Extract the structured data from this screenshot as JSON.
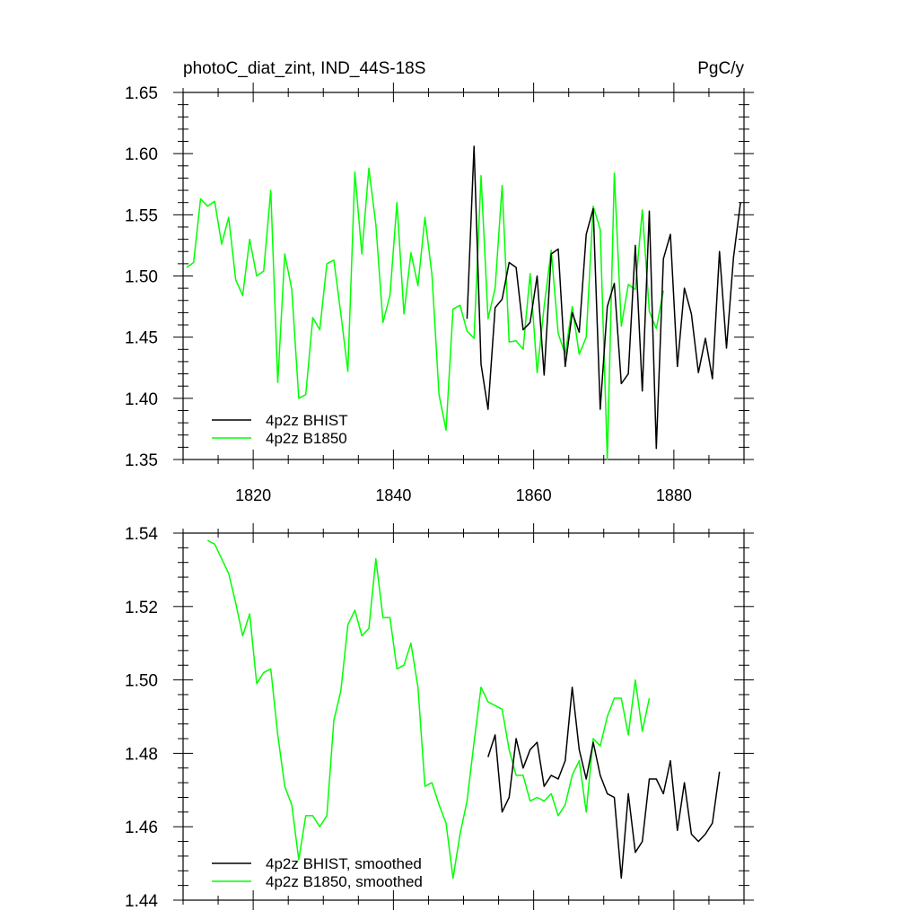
{
  "chart_data": [
    {
      "type": "line",
      "title": "photoC_diat_zint, IND_44S-18S",
      "units": "PgC/y",
      "xlim": [
        1810,
        1890
      ],
      "ylim": [
        1.35,
        1.65
      ],
      "x_ticks": [
        1820,
        1840,
        1860,
        1880
      ],
      "y_ticks": [
        1.35,
        1.4,
        1.45,
        1.5,
        1.55,
        1.6,
        1.65
      ],
      "y_tick_labels": [
        "1.35",
        "1.40",
        "1.45",
        "1.50",
        "1.55",
        "1.60",
        "1.65"
      ],
      "legend_position": "bottom-left",
      "grid": false,
      "series": [
        {
          "name": "4p2z BHIST",
          "color": "#000000",
          "x": [
            1850.5,
            1851.5,
            1852.5,
            1853.5,
            1854.5,
            1855.5,
            1856.5,
            1857.5,
            1858.5,
            1859.5,
            1860.5,
            1861.5,
            1862.5,
            1863.5,
            1864.5,
            1865.5,
            1866.5,
            1867.5,
            1868.5,
            1869.5,
            1870.5,
            1871.5,
            1872.5,
            1873.5,
            1874.5,
            1875.5,
            1876.5,
            1877.5,
            1878.5,
            1879.5,
            1880.5,
            1881.5,
            1882.5,
            1883.5,
            1884.5,
            1885.5,
            1886.5,
            1887.5,
            1888.5,
            1889.5
          ],
          "y": [
            1.465,
            1.606,
            1.428,
            1.391,
            1.474,
            1.481,
            1.511,
            1.507,
            1.456,
            1.462,
            1.5,
            1.419,
            1.518,
            1.522,
            1.426,
            1.47,
            1.454,
            1.534,
            1.555,
            1.391,
            1.475,
            1.494,
            1.412,
            1.42,
            1.525,
            1.406,
            1.553,
            1.359,
            1.514,
            1.534,
            1.426,
            1.49,
            1.469,
            1.421,
            1.449,
            1.416,
            1.52,
            1.441,
            1.515,
            1.56
          ]
        },
        {
          "name": "4p2z B1850",
          "color": "#00ff00",
          "x": [
            1810.5,
            1811.5,
            1812.5,
            1813.5,
            1814.5,
            1815.5,
            1816.5,
            1817.5,
            1818.5,
            1819.5,
            1820.5,
            1821.5,
            1822.5,
            1823.5,
            1824.5,
            1825.5,
            1826.5,
            1827.5,
            1828.5,
            1829.5,
            1830.5,
            1831.5,
            1832.5,
            1833.5,
            1834.5,
            1835.5,
            1836.5,
            1837.5,
            1838.5,
            1839.5,
            1840.5,
            1841.5,
            1842.5,
            1843.5,
            1844.5,
            1845.5,
            1846.5,
            1847.5,
            1848.5,
            1849.5,
            1850.5,
            1851.5,
            1852.5,
            1853.5,
            1854.5,
            1855.5,
            1856.5,
            1857.5,
            1858.5,
            1859.5,
            1860.5,
            1861.5,
            1862.5,
            1863.5,
            1864.5,
            1865.5,
            1866.5,
            1867.5,
            1868.5,
            1869.5,
            1870.5,
            1871.5,
            1872.5,
            1873.5,
            1874.5,
            1875.5,
            1876.5,
            1877.5,
            1878.5
          ],
          "y": [
            1.507,
            1.511,
            1.563,
            1.557,
            1.561,
            1.526,
            1.548,
            1.497,
            1.484,
            1.53,
            1.5,
            1.504,
            1.57,
            1.413,
            1.518,
            1.489,
            1.4,
            1.403,
            1.466,
            1.456,
            1.51,
            1.513,
            1.469,
            1.422,
            1.585,
            1.518,
            1.588,
            1.542,
            1.462,
            1.484,
            1.56,
            1.469,
            1.519,
            1.492,
            1.548,
            1.501,
            1.403,
            1.374,
            1.473,
            1.476,
            1.455,
            1.449,
            1.582,
            1.465,
            1.49,
            1.574,
            1.446,
            1.447,
            1.44,
            1.502,
            1.421,
            1.475,
            1.521,
            1.453,
            1.436,
            1.475,
            1.436,
            1.45,
            1.557,
            1.538,
            1.35,
            1.584,
            1.459,
            1.493,
            1.489,
            1.554,
            1.471,
            1.457,
            1.488
          ]
        }
      ]
    },
    {
      "type": "line",
      "xlim": [
        1810,
        1890
      ],
      "ylim": [
        1.44,
        1.54
      ],
      "x_ticks": [
        1820,
        1840,
        1860,
        1880
      ],
      "y_ticks": [
        1.44,
        1.46,
        1.48,
        1.5,
        1.52,
        1.54
      ],
      "y_tick_labels": [
        "1.44",
        "1.46",
        "1.48",
        "1.50",
        "1.52",
        "1.54"
      ],
      "legend_position": "bottom-left",
      "grid": false,
      "series": [
        {
          "name": "4p2z BHIST, smoothed",
          "color": "#000000",
          "x": [
            1853.5,
            1854.5,
            1855.5,
            1856.5,
            1857.5,
            1858.5,
            1859.5,
            1860.5,
            1861.5,
            1862.5,
            1863.5,
            1864.5,
            1865.5,
            1866.5,
            1867.5,
            1868.5,
            1869.5,
            1870.5,
            1871.5,
            1872.5,
            1873.5,
            1874.5,
            1875.5,
            1876.5,
            1877.5,
            1878.5,
            1879.5,
            1880.5,
            1881.5,
            1882.5,
            1883.5,
            1884.5,
            1885.5,
            1886.5
          ],
          "y": [
            1.479,
            1.485,
            1.464,
            1.468,
            1.484,
            1.476,
            1.481,
            1.483,
            1.471,
            1.474,
            1.473,
            1.478,
            1.498,
            1.481,
            1.473,
            1.483,
            1.474,
            1.469,
            1.468,
            1.446,
            1.469,
            1.453,
            1.456,
            1.473,
            1.473,
            1.469,
            1.478,
            1.459,
            1.472,
            1.458,
            1.456,
            1.458,
            1.461,
            1.475
          ]
        },
        {
          "name": "4p2z B1850, smoothed",
          "color": "#00ff00",
          "x": [
            1813.5,
            1814.5,
            1815.5,
            1816.5,
            1817.5,
            1818.5,
            1819.5,
            1820.5,
            1821.5,
            1822.5,
            1823.5,
            1824.5,
            1825.5,
            1826.5,
            1827.5,
            1828.5,
            1829.5,
            1830.5,
            1831.5,
            1832.5,
            1833.5,
            1834.5,
            1835.5,
            1836.5,
            1837.5,
            1838.5,
            1839.5,
            1840.5,
            1841.5,
            1842.5,
            1843.5,
            1844.5,
            1845.5,
            1846.5,
            1847.5,
            1848.5,
            1849.5,
            1850.5,
            1851.5,
            1852.5,
            1853.5,
            1854.5,
            1855.5,
            1856.5,
            1857.5,
            1858.5,
            1859.5,
            1860.5,
            1861.5,
            1862.5,
            1863.5,
            1864.5,
            1865.5,
            1866.5,
            1867.5,
            1868.5,
            1869.5,
            1870.5,
            1871.5,
            1872.5,
            1873.5,
            1874.5,
            1875.5,
            1876.5
          ],
          "y": [
            1.538,
            1.537,
            1.533,
            1.529,
            1.521,
            1.512,
            1.518,
            1.499,
            1.502,
            1.503,
            1.485,
            1.471,
            1.466,
            1.451,
            1.463,
            1.463,
            1.46,
            1.463,
            1.489,
            1.497,
            1.515,
            1.519,
            1.512,
            1.514,
            1.533,
            1.517,
            1.517,
            1.503,
            1.504,
            1.51,
            1.498,
            1.471,
            1.472,
            1.466,
            1.461,
            1.446,
            1.458,
            1.467,
            1.483,
            1.498,
            1.494,
            1.493,
            1.492,
            1.481,
            1.474,
            1.474,
            1.467,
            1.468,
            1.467,
            1.469,
            1.463,
            1.466,
            1.474,
            1.478,
            1.464,
            1.484,
            1.482,
            1.49,
            1.495,
            1.495,
            1.485,
            1.5,
            1.486,
            1.495
          ]
        }
      ]
    }
  ]
}
